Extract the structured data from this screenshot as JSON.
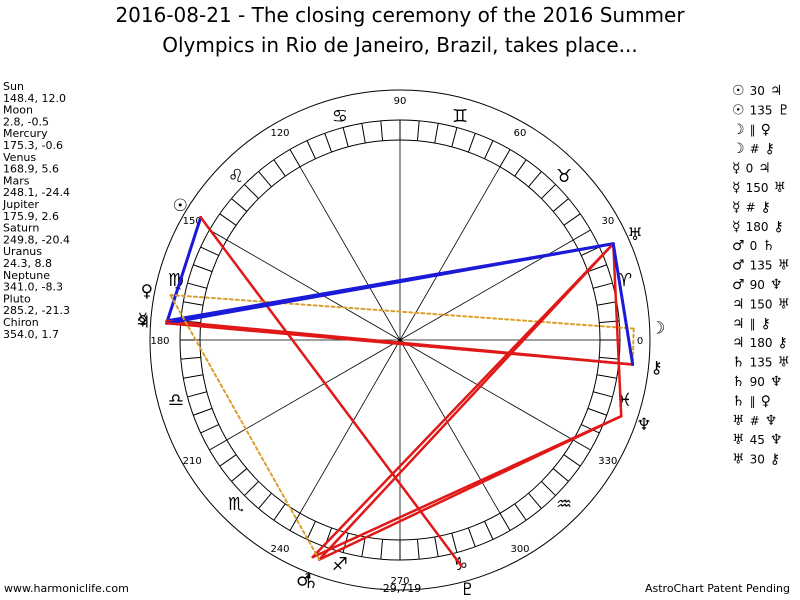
{
  "header": {
    "title_lines": [
      "2016-08-21 - The closing ceremony of the 2016 Summer",
      "Olympics in Rio de Janeiro, Brazil, takes place..."
    ]
  },
  "planets": [
    {
      "name": "Sun",
      "coords": "148.4, 12.0",
      "glyph": "☉"
    },
    {
      "name": "Moon",
      "coords": "2.8, -0.5",
      "glyph": "☽"
    },
    {
      "name": "Mercury",
      "coords": "175.3, -0.6",
      "glyph": "☿"
    },
    {
      "name": "Venus",
      "coords": "168.9, 5.6",
      "glyph": "♀"
    },
    {
      "name": "Mars",
      "coords": "248.1, -24.4",
      "glyph": "♂"
    },
    {
      "name": "Jupiter",
      "coords": "175.9, 2.6",
      "glyph": "♃"
    },
    {
      "name": "Saturn",
      "coords": "249.8, -20.4",
      "glyph": "♄"
    },
    {
      "name": "Uranus",
      "coords": "24.3, 8.8",
      "glyph": "♅"
    },
    {
      "name": "Neptune",
      "coords": "341.0, -8.3",
      "glyph": "♆"
    },
    {
      "name": "Pluto",
      "coords": "285.2, -21.3",
      "glyph": "♇"
    },
    {
      "name": "Chiron",
      "coords": "354.0, 1.7",
      "glyph": "⚷"
    }
  ],
  "aspects": [
    {
      "p1": "☉",
      "aspect": "30",
      "p2": "♃"
    },
    {
      "p1": "☉",
      "aspect": "135",
      "p2": "♇"
    },
    {
      "p1": "☽",
      "aspect": "∥",
      "p2": "♀"
    },
    {
      "p1": "☽",
      "aspect": "#",
      "p2": "⚷"
    },
    {
      "p1": "☿",
      "aspect": "0",
      "p2": "♃"
    },
    {
      "p1": "☿",
      "aspect": "150",
      "p2": "♅"
    },
    {
      "p1": "☿",
      "aspect": "#",
      "p2": "⚷"
    },
    {
      "p1": "☿",
      "aspect": "180",
      "p2": "⚷"
    },
    {
      "p1": "♂",
      "aspect": "0",
      "p2": "♄"
    },
    {
      "p1": "♂",
      "aspect": "135",
      "p2": "♅"
    },
    {
      "p1": "♂",
      "aspect": "90",
      "p2": "♆"
    },
    {
      "p1": "♃",
      "aspect": "150",
      "p2": "♅"
    },
    {
      "p1": "♃",
      "aspect": "∥",
      "p2": "⚷"
    },
    {
      "p1": "♃",
      "aspect": "180",
      "p2": "⚷"
    },
    {
      "p1": "♄",
      "aspect": "135",
      "p2": "♅"
    },
    {
      "p1": "♄",
      "aspect": "90",
      "p2": "♆"
    },
    {
      "p1": "♄",
      "aspect": "∥",
      "p2": "♀"
    },
    {
      "p1": "♅",
      "aspect": "#",
      "p2": "♆"
    },
    {
      "p1": "♅",
      "aspect": "45",
      "p2": "♆"
    },
    {
      "p1": "♅",
      "aspect": "30",
      "p2": "⚷"
    }
  ],
  "wheel": {
    "degree_labels": [
      "0",
      "30",
      "60",
      "90",
      "120",
      "150",
      "180",
      "210",
      "240",
      "270",
      "300",
      "330"
    ],
    "signs": [
      "♈",
      "♉",
      "♊",
      "♋",
      "♌",
      "♍",
      "♎",
      "♏",
      "♐",
      "♑",
      "♒",
      "♓"
    ],
    "center_label": "-29,719"
  },
  "footer": {
    "left": "www.harmoniclife.com",
    "right": "AstroChart Patent Pending"
  }
}
